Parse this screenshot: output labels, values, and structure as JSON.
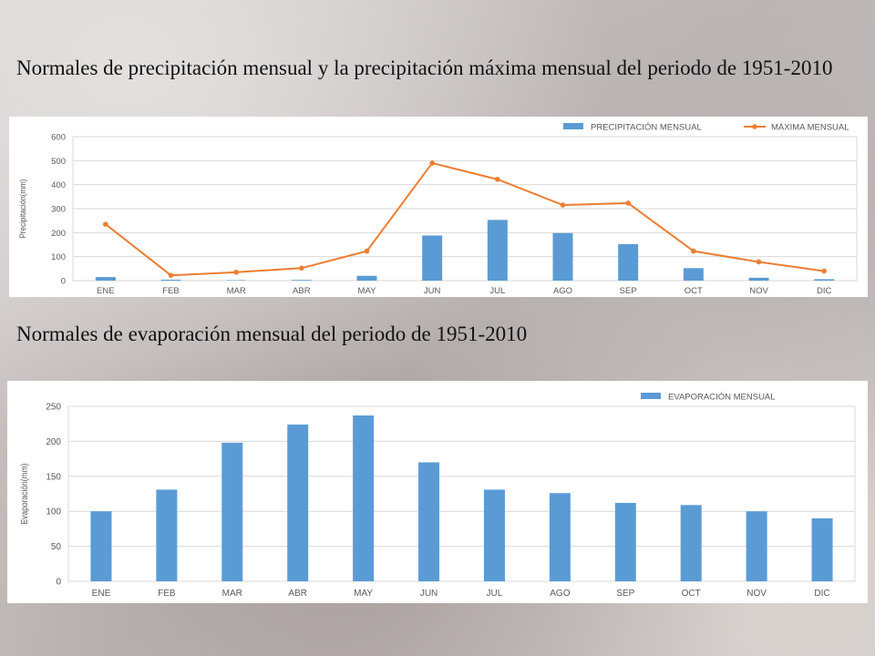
{
  "headings": {
    "precip": "Normales de precipitación mensual y la precipitación máxima mensual del periodo de 1951-2010",
    "evap": "Normales de evaporación mensual del periodo de 1951-2010"
  },
  "chart_data": [
    {
      "type": "bar",
      "title": "",
      "categories": [
        "ENE",
        "FEB",
        "MAR",
        "ABR",
        "MAY",
        "JUN",
        "JUL",
        "AGO",
        "SEP",
        "OCT",
        "NOV",
        "DIC"
      ],
      "series": [
        {
          "name": "PRECIPITACIÓN MENSUAL",
          "type": "bar",
          "color": "#5b9bd5",
          "values": [
            15,
            4,
            2,
            3,
            20,
            188,
            253,
            198,
            152,
            52,
            12,
            6
          ]
        },
        {
          "name": "MÁXIMA MENSUAL",
          "type": "line",
          "color": "#ed7d31",
          "values": [
            235,
            22,
            35,
            52,
            123,
            490,
            422,
            315,
            323,
            123,
            78,
            40
          ]
        }
      ],
      "xlabel": "",
      "ylabel": "Precipitación(mm)",
      "ylim": [
        0,
        600
      ],
      "yticks": [
        0,
        100,
        200,
        300,
        400,
        500,
        600
      ],
      "grid": true,
      "legend": "top-right"
    },
    {
      "type": "bar",
      "title": "",
      "categories": [
        "ENE",
        "FEB",
        "MAR",
        "ABR",
        "MAY",
        "JUN",
        "JUL",
        "AGO",
        "SEP",
        "OCT",
        "NOV",
        "DIC"
      ],
      "series": [
        {
          "name": "EVAPORACIÓN MENSUAL",
          "type": "bar",
          "color": "#5b9bd5",
          "values": [
            100,
            131,
            198,
            224,
            237,
            170,
            131,
            126,
            112,
            109,
            100,
            90
          ]
        }
      ],
      "xlabel": "",
      "ylabel": "Evaporación(mm)",
      "ylim": [
        0,
        250
      ],
      "yticks": [
        0,
        50,
        100,
        150,
        200,
        250
      ],
      "grid": true,
      "legend": "top-right"
    }
  ]
}
